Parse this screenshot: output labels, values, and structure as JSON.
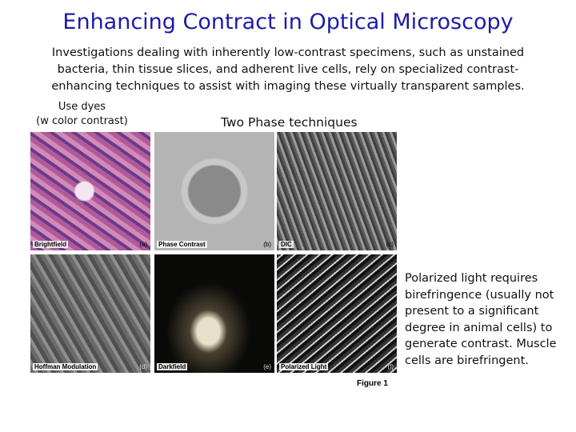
{
  "header": {
    "title": "Enhancing Contract in Optical Microscopy"
  },
  "intro": {
    "lines": [
      "Investigations dealing with inherently low-contrast specimens, such as unstained",
      "bacteria, thin tissue slices, and adherent live cells, rely on specialized contrast-",
      "enhancing techniques to assist with imaging these virtually transparent samples."
    ]
  },
  "notes": {
    "dyes": [
      "Use dyes",
      "(w color contrast)"
    ],
    "phase": "Two Phase techniques",
    "polarized": [
      "Polarized light requires",
      "birefringence (usually not",
      "present to a significant",
      "degree in animal cells) to",
      "generate contrast. Muscle",
      "cells are birefringent."
    ]
  },
  "figure": {
    "panels": [
      {
        "label": "Brightfield",
        "letter": "(a)"
      },
      {
        "label": "Phase Contrast",
        "letter": "(b)"
      },
      {
        "label": "DIC",
        "letter": "(c)"
      },
      {
        "label": "Hoffman Modulation",
        "letter": "(d)"
      },
      {
        "label": "Darkfield",
        "letter": "(e)"
      },
      {
        "label": "Polarized Light",
        "letter": "(f)"
      }
    ],
    "caption": "Figure 1"
  }
}
